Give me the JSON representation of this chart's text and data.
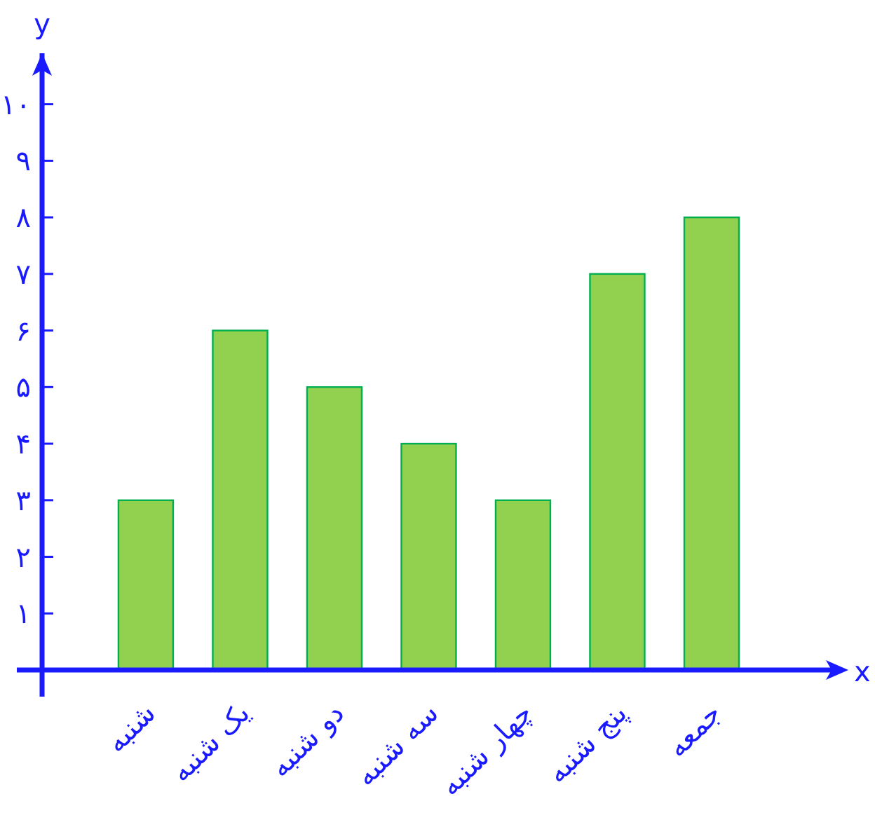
{
  "chart_data": {
    "type": "bar",
    "xlabel": "x",
    "ylabel": "y",
    "categories": [
      "شنبه",
      "یک شنبه",
      "دو شنبه",
      "سه شنبه",
      "چهار شنبه",
      "پنج شنبه",
      "جمعه"
    ],
    "values": [
      3,
      6,
      5,
      4,
      3,
      7,
      8
    ],
    "color": "#92d050",
    "ylim": [
      0,
      10.9
    ],
    "yticks": [
      {
        "value": 1,
        "label": "۱"
      },
      {
        "value": 2,
        "label": "۲"
      },
      {
        "value": 3,
        "label": "۳"
      },
      {
        "value": 4,
        "label": "۴"
      },
      {
        "value": 5,
        "label": "۵"
      },
      {
        "value": 6,
        "label": "۶"
      },
      {
        "value": 7,
        "label": "۷"
      },
      {
        "value": 8,
        "label": "۸"
      },
      {
        "value": 9,
        "label": "۹"
      },
      {
        "value": 10,
        "label": "۱۰"
      }
    ],
    "grid": false
  }
}
